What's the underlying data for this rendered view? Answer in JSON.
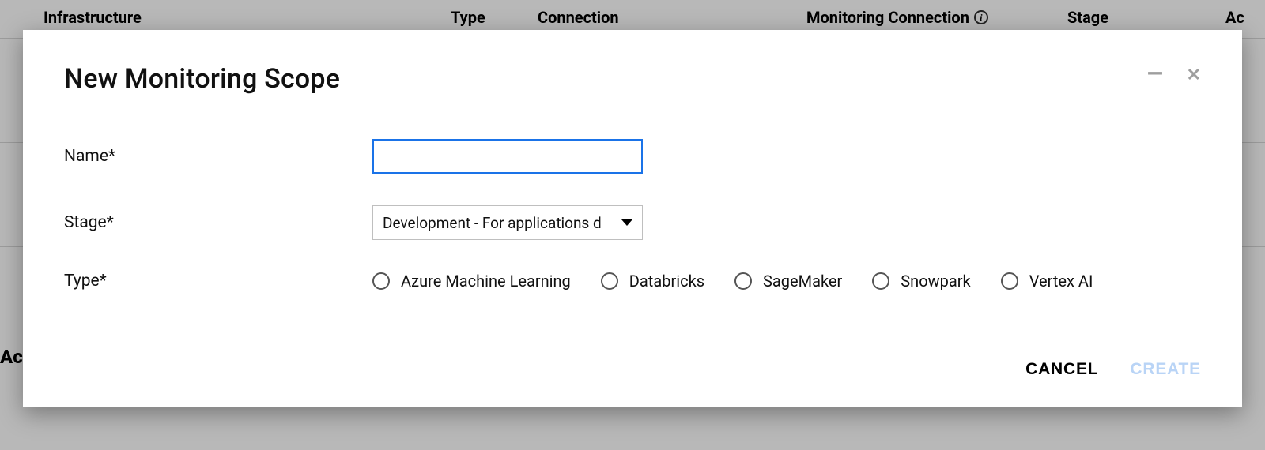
{
  "background": {
    "columns": {
      "infrastructure": "Infrastructure",
      "type": "Type",
      "connection": "Connection",
      "monitoring_connection": "Monitoring Connection",
      "stage": "Stage",
      "actions_partial": "Ac"
    },
    "section_partial": "Ac"
  },
  "dialog": {
    "title": "New Monitoring Scope",
    "fields": {
      "name": {
        "label": "Name*",
        "value": ""
      },
      "stage": {
        "label": "Stage*",
        "selected": "Development - For applications d"
      },
      "type": {
        "label": "Type*",
        "options": [
          "Azure Machine Learning",
          "Databricks",
          "SageMaker",
          "Snowpark",
          "Vertex AI"
        ]
      }
    },
    "buttons": {
      "cancel": "CANCEL",
      "create": "CREATE"
    }
  },
  "colors": {
    "overlay_bg": "#b8b8b8",
    "dialog_bg": "#ffffff",
    "focus_border": "#1a73e8",
    "input_border": "#bfbfbf",
    "text": "#111111",
    "disabled_action": "#b9d4f6",
    "win_control": "#9e9e9e"
  }
}
